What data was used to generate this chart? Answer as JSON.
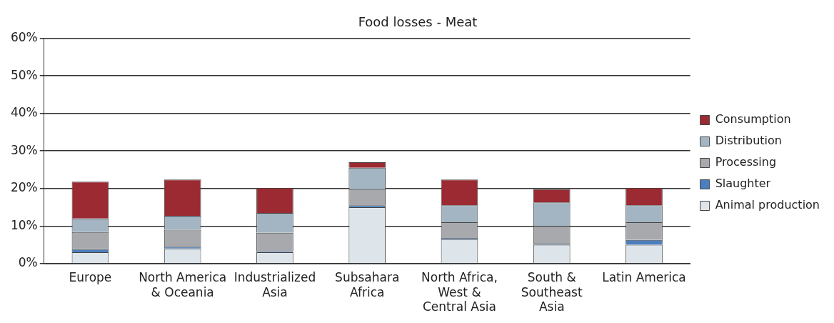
{
  "chart_data": {
    "type": "bar",
    "title": "Food losses - Meat",
    "stacked": true,
    "categories": [
      "Europe",
      "North America & Oceania",
      "Industrialized Asia",
      "Subsahara Africa",
      "North Africa, West & Central Asia",
      "South & Southeast Asia",
      "Latin America"
    ],
    "series": [
      {
        "name": "Animal production",
        "color": "#dde5ea",
        "values": [
          3,
          4,
          3,
          15,
          6.5,
          5,
          5
        ]
      },
      {
        "name": "Slaughter",
        "color": "#4a7fbf",
        "values": [
          0.8,
          0.5,
          0.3,
          0.5,
          0.3,
          0.3,
          1.3
        ]
      },
      {
        "name": "Processing",
        "color": "#a8a9ac",
        "values": [
          4.6,
          4.5,
          4.9,
          4.3,
          4.2,
          4.7,
          4.7
        ]
      },
      {
        "name": "Distribution",
        "color": "#a3b5c2",
        "values": [
          3.6,
          3.7,
          5.3,
          5.7,
          4.5,
          6.3,
          4.5
        ]
      },
      {
        "name": "Consumption",
        "color": "#9b2a32",
        "values": [
          9.8,
          9.7,
          6.7,
          1.5,
          6.9,
          3.5,
          4.7
        ]
      }
    ],
    "ylim": [
      0,
      60
    ],
    "yticks": [
      {
        "value": 0,
        "label": "0%"
      },
      {
        "value": 10,
        "label": "10%"
      },
      {
        "value": 20,
        "label": "20%"
      },
      {
        "value": 30,
        "label": "30%"
      },
      {
        "value": 40,
        "label": "40%"
      },
      {
        "value": 50,
        "label": "50%"
      },
      {
        "value": 60,
        "label": "60%"
      }
    ],
    "grid": "y",
    "legend": "right"
  }
}
